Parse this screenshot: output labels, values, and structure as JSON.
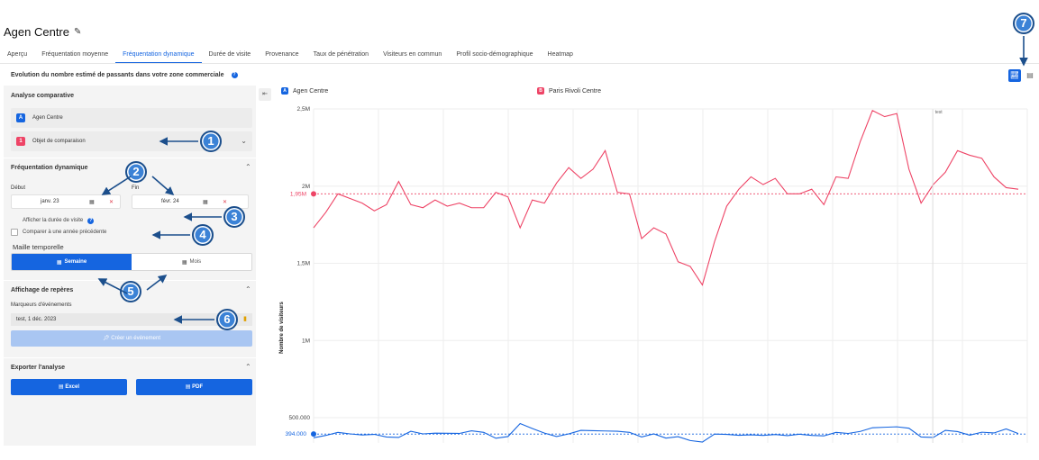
{
  "header": {
    "title": "Agen Centre"
  },
  "tabs": [
    "Aperçu",
    "Fréquentation moyenne",
    "Fréquentation dynamique",
    "Durée de visite",
    "Provenance",
    "Taux de pénétration",
    "Visiteurs en commun",
    "Profil socio-démographique",
    "Heatmap"
  ],
  "active_tab": 2,
  "subtitle": "Evolution du nombre estimé de passants dans votre zone commerciale",
  "analyse": {
    "title": "Analyse comparative",
    "items": [
      {
        "badge": "A",
        "label": "Agen Centre",
        "color": "#1565e0"
      },
      {
        "badge": "1",
        "label": "Objet de comparaison",
        "color": "#ee4466"
      }
    ]
  },
  "frequentation": {
    "title": "Fréquentation dynamique",
    "debut_label": "Début",
    "fin_label": "Fin",
    "debut_value": "janv. 23",
    "fin_value": "févr. 24",
    "check_duree": "Afficher la durée de visite",
    "check_compare": "Comparer à une année précédente",
    "maille_label": "Maille temporelle",
    "semaine": "Semaine",
    "mois": "Mois"
  },
  "reperes": {
    "title": "Affichage de repères",
    "marqueurs_label": "Marqueurs d'événements",
    "event_text": "test, 1 déc. 2023",
    "create_button": "Créer un événement"
  },
  "export": {
    "title": "Exporter l'analyse",
    "excel": "Excel",
    "pdf": "PDF"
  },
  "callouts": [
    "1",
    "2",
    "3",
    "4",
    "5",
    "6",
    "7"
  ],
  "chart_data": {
    "type": "line",
    "ylabel": "Nombre de visiteurs",
    "y_ticks": [
      "2,5M",
      "2M",
      "1,5M",
      "1M",
      "500.000"
    ],
    "y_tick_values": [
      2500000,
      2000000,
      1500000,
      1000000,
      500000
    ],
    "ylim": [
      380000,
      2500000
    ],
    "reference_lines": [
      {
        "label": "1,95M",
        "value": 1950000,
        "color": "#ee4466"
      },
      {
        "label": "394.000",
        "value": 394000,
        "color": "#1565e0"
      }
    ],
    "event_marker": {
      "label": "test",
      "index": 51
    },
    "series": [
      {
        "name": "Paris Rivoli Centre",
        "badge": "B",
        "color": "#ee4466",
        "values": [
          1730000,
          1830000,
          1950000,
          1920000,
          1890000,
          1840000,
          1880000,
          2030000,
          1880000,
          1860000,
          1910000,
          1870000,
          1890000,
          1860000,
          1860000,
          1960000,
          1930000,
          1730000,
          1910000,
          1890000,
          2020000,
          2120000,
          2050000,
          2110000,
          2230000,
          1960000,
          1950000,
          1660000,
          1730000,
          1690000,
          1510000,
          1480000,
          1360000,
          1640000,
          1870000,
          1980000,
          2060000,
          2010000,
          2050000,
          1950000,
          1950000,
          1980000,
          1880000,
          2060000,
          2050000,
          2290000,
          2490000,
          2450000,
          2470000,
          2110000,
          1890000,
          2010000,
          2090000,
          2230000,
          2200000,
          2180000,
          2060000,
          1990000,
          1980000
        ]
      },
      {
        "name": "Agen Centre",
        "badge": "A",
        "color": "#1565e0",
        "values": [
          370000,
          385000,
          405000,
          395000,
          388000,
          392000,
          375000,
          372000,
          412000,
          395000,
          400000,
          399000,
          398000,
          415000,
          405000,
          367000,
          378000,
          462000,
          430000,
          400000,
          378000,
          395000,
          418000,
          416000,
          414000,
          412000,
          405000,
          375000,
          395000,
          368000,
          377000,
          352000,
          342000,
          394000,
          392000,
          386000,
          389000,
          385000,
          391000,
          384000,
          393000,
          385000,
          382000,
          405000,
          398000,
          411000,
          435000,
          438000,
          441000,
          432000,
          375000,
          372000,
          418000,
          410000,
          387000,
          406000,
          401000,
          427000,
          397000
        ]
      }
    ]
  }
}
